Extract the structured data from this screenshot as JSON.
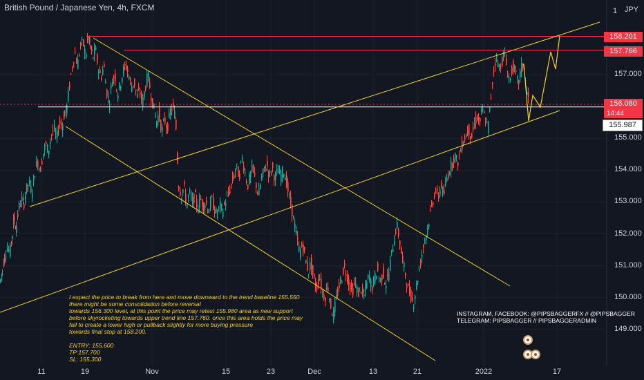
{
  "header": {
    "title": "British Pound / Japanese Yen, 4h, FXCM"
  },
  "axis": {
    "unit": "JPY",
    "top_partial_tick": "1",
    "y_ticks": [
      "157.000",
      "156.000",
      "155.000",
      "154.000",
      "153.000",
      "152.000",
      "151.000",
      "150.000",
      "149.000"
    ],
    "x_ticks": [
      "11",
      "19",
      "Nov",
      "15",
      "23",
      "Dec",
      "13",
      "21",
      "2022",
      "17"
    ],
    "price_tags": [
      {
        "value": "158.201",
        "kind": "red"
      },
      {
        "value": "157.766",
        "kind": "red"
      },
      {
        "value": "156.080",
        "kind": "red"
      },
      {
        "value": "155.987",
        "kind": "white"
      }
    ],
    "timer": "14:44"
  },
  "chart_data": {
    "type": "candlestick",
    "title": "British Pound / Japanese Yen, 4h, FXCM",
    "x_ticks": [
      "11",
      "19",
      "Nov",
      "15",
      "23",
      "Dec",
      "13",
      "21",
      "2022",
      "17"
    ],
    "y_ticks": [
      157.0,
      156.0,
      155.0,
      154.0,
      153.0,
      152.0,
      151.0,
      150.0,
      149.0
    ],
    "ylim": [
      148.1,
      159.0
    ],
    "up_color": "#26a69a",
    "down_color": "#ef5350",
    "approx_close_path": [
      [
        0,
        150.5
      ],
      [
        3,
        150.8
      ],
      [
        6,
        151.2
      ],
      [
        10,
        151.6
      ],
      [
        14,
        151.4
      ],
      [
        17,
        151.9
      ],
      [
        20,
        152.5
      ],
      [
        23,
        152.2
      ],
      [
        27,
        152.8
      ],
      [
        31,
        153.1
      ],
      [
        34,
        152.9
      ],
      [
        38,
        153.4
      ],
      [
        42,
        153.6
      ],
      [
        46,
        153.3
      ],
      [
        50,
        153.9
      ],
      [
        54,
        154.3
      ],
      [
        58,
        154.0
      ],
      [
        62,
        154.5
      ],
      [
        66,
        154.8
      ],
      [
        70,
        154.6
      ],
      [
        74,
        155.1
      ],
      [
        78,
        155.3
      ],
      [
        82,
        155.0
      ],
      [
        86,
        155.5
      ],
      [
        90,
        155.4
      ],
      [
        93,
        155.8
      ],
      [
        96,
        155.9
      ],
      [
        100,
        156.6
      ],
      [
        104,
        157.2
      ],
      [
        108,
        157.7
      ],
      [
        112,
        157.3
      ],
      [
        116,
        157.9
      ],
      [
        120,
        158.0
      ],
      [
        124,
        157.6
      ],
      [
        127,
        158.2
      ],
      [
        130,
        157.9
      ],
      [
        134,
        157.5
      ],
      [
        138,
        157.8
      ],
      [
        142,
        157.2
      ],
      [
        146,
        156.9
      ],
      [
        150,
        157.3
      ],
      [
        154,
        156.5
      ],
      [
        158,
        156.1
      ],
      [
        162,
        156.8
      ],
      [
        166,
        157.0
      ],
      [
        170,
        156.4
      ],
      [
        174,
        156.7
      ],
      [
        178,
        157.1
      ],
      [
        182,
        157.3
      ],
      [
        186,
        157.0
      ],
      [
        190,
        156.6
      ],
      [
        194,
        156.8
      ],
      [
        198,
        156.3
      ],
      [
        202,
        156.5
      ],
      [
        206,
        156.1
      ],
      [
        210,
        156.6
      ],
      [
        214,
        157.0
      ],
      [
        218,
        156.4
      ],
      [
        222,
        156.0
      ],
      [
        226,
        155.5
      ],
      [
        230,
        155.8
      ],
      [
        234,
        155.2
      ],
      [
        238,
        155.6
      ],
      [
        242,
        155.3
      ],
      [
        246,
        155.8
      ],
      [
        250,
        156.0
      ],
      [
        254,
        155.6
      ],
      [
        258,
        153.6
      ],
      [
        262,
        153.2
      ],
      [
        266,
        153.5
      ],
      [
        270,
        152.9
      ],
      [
        274,
        153.3
      ],
      [
        278,
        153.0
      ],
      [
        282,
        153.2
      ],
      [
        286,
        152.8
      ],
      [
        290,
        153.1
      ],
      [
        294,
        152.9
      ],
      [
        298,
        153.0
      ],
      [
        302,
        152.7
      ],
      [
        306,
        153.1
      ],
      [
        310,
        152.8
      ],
      [
        314,
        152.6
      ],
      [
        318,
        152.9
      ],
      [
        322,
        152.7
      ],
      [
        326,
        153.0
      ],
      [
        330,
        153.2
      ],
      [
        334,
        153.5
      ],
      [
        338,
        153.8
      ],
      [
        342,
        154.1
      ],
      [
        346,
        153.8
      ],
      [
        350,
        154.4
      ],
      [
        354,
        154.0
      ],
      [
        358,
        153.5
      ],
      [
        362,
        153.8
      ],
      [
        366,
        154.1
      ],
      [
        370,
        153.6
      ],
      [
        374,
        153.2
      ],
      [
        378,
        153.7
      ],
      [
        382,
        154.0
      ],
      [
        386,
        154.2
      ],
      [
        390,
        153.8
      ],
      [
        394,
        154.1
      ],
      [
        398,
        153.7
      ],
      [
        402,
        154.0
      ],
      [
        406,
        153.8
      ],
      [
        410,
        154.0
      ],
      [
        414,
        153.7
      ],
      [
        418,
        153.2
      ],
      [
        422,
        152.8
      ],
      [
        426,
        152.3
      ],
      [
        430,
        151.8
      ],
      [
        434,
        151.4
      ],
      [
        438,
        151.7
      ],
      [
        442,
        151.2
      ],
      [
        446,
        150.8
      ],
      [
        450,
        151.1
      ],
      [
        454,
        150.6
      ],
      [
        458,
        150.3
      ],
      [
        462,
        150.7
      ],
      [
        466,
        150.2
      ],
      [
        470,
        150.0
      ],
      [
        474,
        150.4
      ],
      [
        478,
        149.8
      ],
      [
        482,
        149.4
      ],
      [
        486,
        149.9
      ],
      [
        490,
        150.3
      ],
      [
        494,
        150.6
      ],
      [
        498,
        151.0
      ],
      [
        502,
        150.7
      ],
      [
        506,
        150.4
      ],
      [
        510,
        150.2
      ],
      [
        514,
        150.5
      ],
      [
        518,
        150.1
      ],
      [
        522,
        150.3
      ],
      [
        526,
        150.0
      ],
      [
        530,
        150.4
      ],
      [
        534,
        150.7
      ],
      [
        538,
        150.3
      ],
      [
        542,
        150.6
      ],
      [
        546,
        150.9
      ],
      [
        550,
        150.5
      ],
      [
        554,
        150.8
      ],
      [
        558,
        150.4
      ],
      [
        562,
        150.7
      ],
      [
        566,
        151.3
      ],
      [
        570,
        151.8
      ],
      [
        574,
        152.3
      ],
      [
        578,
        151.8
      ],
      [
        582,
        151.2
      ],
      [
        586,
        150.8
      ],
      [
        590,
        150.3
      ],
      [
        594,
        150.1
      ],
      [
        598,
        149.8
      ],
      [
        602,
        150.3
      ],
      [
        606,
        150.8
      ],
      [
        610,
        151.3
      ],
      [
        614,
        151.8
      ],
      [
        618,
        152.1
      ],
      [
        622,
        152.6
      ],
      [
        626,
        153.0
      ],
      [
        630,
        153.4
      ],
      [
        634,
        153.1
      ],
      [
        638,
        153.6
      ],
      [
        642,
        153.2
      ],
      [
        646,
        153.7
      ],
      [
        650,
        154.0
      ],
      [
        654,
        154.2
      ],
      [
        658,
        154.5
      ],
      [
        662,
        154.2
      ],
      [
        666,
        154.6
      ],
      [
        670,
        154.9
      ],
      [
        674,
        155.1
      ],
      [
        678,
        155.3
      ],
      [
        682,
        155.0
      ],
      [
        686,
        155.4
      ],
      [
        690,
        155.7
      ],
      [
        694,
        155.5
      ],
      [
        698,
        155.9
      ],
      [
        702,
        155.6
      ],
      [
        706,
        155.3
      ],
      [
        710,
        156.2
      ],
      [
        714,
        157.1
      ],
      [
        718,
        157.6
      ],
      [
        722,
        157.2
      ],
      [
        726,
        157.4
      ],
      [
        730,
        157.7
      ],
      [
        734,
        157.1
      ],
      [
        738,
        156.8
      ],
      [
        742,
        157.3
      ],
      [
        746,
        157.0
      ],
      [
        750,
        156.7
      ],
      [
        754,
        157.2
      ],
      [
        758,
        157.3
      ],
      [
        762,
        156.5
      ],
      [
        766,
        156.1
      ]
    ],
    "horizontal_levels": [
      {
        "value": 158.201,
        "color": "#f23645"
      },
      {
        "value": 157.766,
        "color": "#f23645"
      },
      {
        "value": 155.987,
        "color": "#ffffff"
      }
    ],
    "current_price": 156.08,
    "trend_lines": "yellow (#f2d31b) ascending channel, descending channel and projected zigzag path",
    "annotations": {
      "analysis_lines": [
        "I expect the price to break from here and move downward to the trend baseline 155.550",
        "there might be some consolidation before reversal",
        "towards 156.300 level, at this point the price may retest 155.980 area as new support",
        "before skyrocketing towards upper trend line 157.760. once this area holds the price may",
        "fall to create a lower high or pullback slightly for more buying pressure",
        "towards final stop at 158.200."
      ],
      "levels": [
        "ENTRY: 155.600",
        "TP:157.700",
        "SL: 155.300"
      ],
      "social": [
        "INSTAGRAM, FACEBOOK: @PIPSBAGGERFX // @PIPSBAGGER",
        "TELEGRAM: PIPSBAGGER // PIPSBAGGERADMIN"
      ]
    }
  }
}
